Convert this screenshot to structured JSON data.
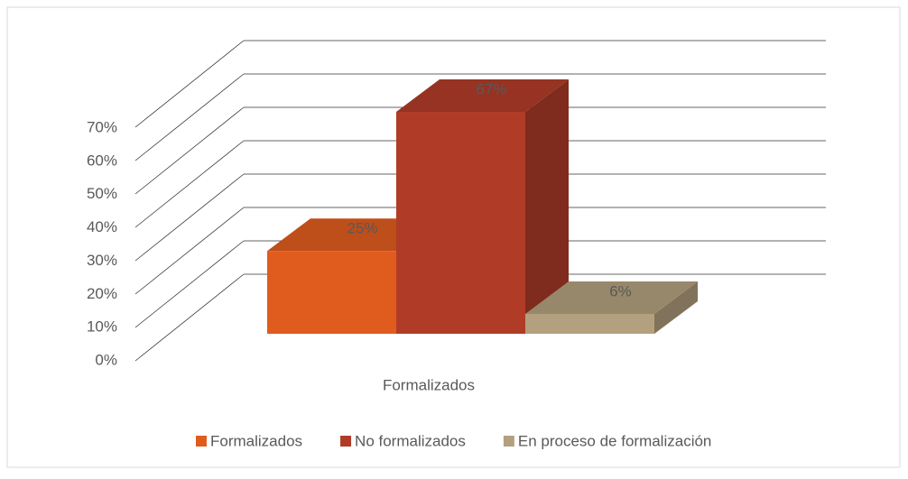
{
  "chart_data": {
    "type": "bar3d",
    "categories": [
      "Formalizados"
    ],
    "series": [
      {
        "name": "Formalizados",
        "color": "#e05c1e",
        "values": [
          25
        ],
        "value_labels": [
          "25%"
        ]
      },
      {
        "name": "No formalizados",
        "color": "#b03c28",
        "values": [
          67
        ],
        "value_labels": [
          "67%"
        ]
      },
      {
        "name": "En proceso de formalización",
        "color": "#b3a07e",
        "values": [
          6
        ],
        "value_labels": [
          "6%"
        ]
      }
    ],
    "ylim": [
      0,
      70
    ],
    "yticks": [
      {
        "value": 0,
        "label": "0%"
      },
      {
        "value": 10,
        "label": "10%"
      },
      {
        "value": 20,
        "label": "20%"
      },
      {
        "value": 30,
        "label": "30%"
      },
      {
        "value": 40,
        "label": "40%"
      },
      {
        "value": 50,
        "label": "50%"
      },
      {
        "value": 60,
        "label": "60%"
      },
      {
        "value": 70,
        "label": "70%"
      }
    ],
    "grid": true,
    "legend": "bottom"
  }
}
